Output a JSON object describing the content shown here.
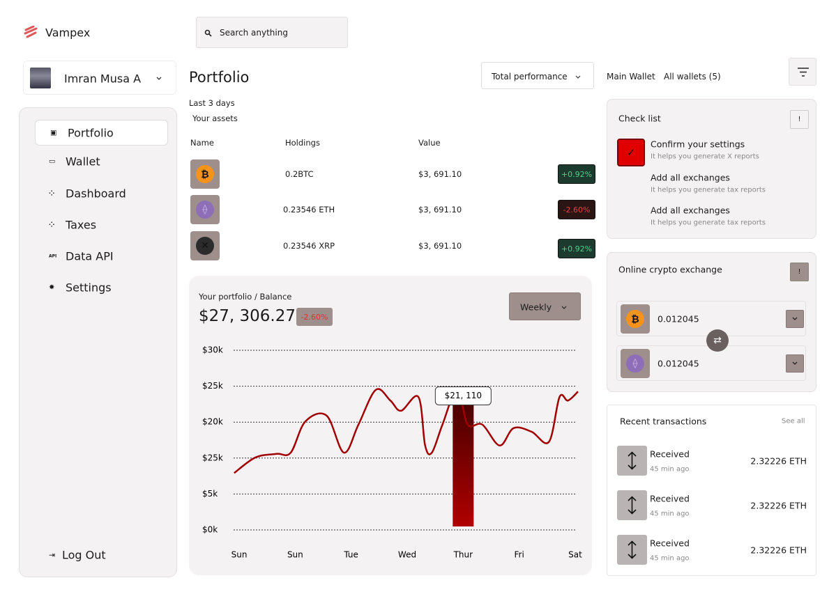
{
  "brand": "Vampex",
  "search": {
    "placeholder": "Search anything"
  },
  "user": {
    "name": "Imran Musa A"
  },
  "nav": {
    "items": [
      "Portfolio",
      "Wallet",
      "Dashboard",
      "Taxes",
      "Data API",
      "Settings"
    ],
    "logout": "Log Out"
  },
  "portfolio": {
    "title": "Portfolio",
    "performance": "Total performance",
    "period": "Last 3 days",
    "subtitle": "Your assets",
    "table": {
      "headers": [
        "Name",
        "Holdings",
        "Value"
      ],
      "rows": [
        {
          "holdings": "0.2BTC",
          "value": "$3, 691.10",
          "change": "+0.92%"
        },
        {
          "holdings": "0.23546 ETH",
          "value": "$3, 691.10",
          "change": "-2.60%"
        },
        {
          "holdings": "0.23546 XRP",
          "value": "$3, 691.10",
          "change": "+0.92%"
        }
      ]
    }
  },
  "balance": {
    "label": "Your portfolio / Balance",
    "amount": "$27, 306.27",
    "change": "-2.60%",
    "range": "Weekly",
    "chart_data": {
      "type": "line",
      "color": "#a00000",
      "y_labels": [
        "$30k",
        "$25k",
        "$20k",
        "$25k",
        "$5k",
        "$0k"
      ],
      "ylim": [
        0,
        30000
      ],
      "xlim": [
        -0.1,
        6.05
      ],
      "xticks": [
        {
          "value": 0,
          "label": "Sun"
        },
        {
          "value": 1,
          "label": "Sun"
        },
        {
          "value": 2,
          "label": "Tue"
        },
        {
          "value": 3,
          "label": "Wed"
        },
        {
          "value": 4,
          "label": "Thur"
        },
        {
          "value": 5,
          "label": "Fri"
        },
        {
          "value": 6,
          "label": "Sat"
        }
      ],
      "x": [
        -0.09,
        0.29,
        0.67,
        0.92,
        1.18,
        1.56,
        1.87,
        2.13,
        2.44,
        2.7,
        2.89,
        3.2,
        3.32,
        3.44,
        3.63,
        3.89,
        4.08,
        4.34,
        4.65,
        4.9,
        5.22,
        5.53,
        5.72,
        5.87,
        6.05
      ],
      "values": [
        9500,
        12100,
        12700,
        12900,
        18100,
        19100,
        12900,
        17600,
        23400,
        21600,
        19900,
        22200,
        14100,
        12900,
        17600,
        23400,
        17600,
        17600,
        14100,
        17000,
        16400,
        14700,
        22200,
        21600,
        23100
      ],
      "highlight": {
        "x": 4,
        "value": 21110,
        "label": "$21, 110"
      }
    }
  },
  "wallet": {
    "tabs": [
      "Main Wallet",
      "All wallets (5)"
    ]
  },
  "checklist": {
    "title": "Check list",
    "items": [
      {
        "title": "Confirm your settings",
        "note": "It helps you generate X reports"
      },
      {
        "title": "Add all exchanges",
        "note": "It helps you generate tax reports"
      },
      {
        "title": "Add all exchanges",
        "note": "It helps you generate tax reports"
      }
    ]
  },
  "exchange": {
    "title": "Online crypto exchange",
    "rows": [
      "0.012045",
      "0.012045"
    ]
  },
  "transactions": {
    "title": "Recent transactions",
    "see_all": "See all",
    "items": [
      {
        "type": "Received",
        "time": "45 min ago",
        "amount": "2.32226 ETH"
      },
      {
        "type": "Received",
        "time": "45 min ago",
        "amount": "2.32226 ETH"
      },
      {
        "type": "Received",
        "time": "45 min ago",
        "amount": "2.32226 ETH"
      }
    ]
  }
}
